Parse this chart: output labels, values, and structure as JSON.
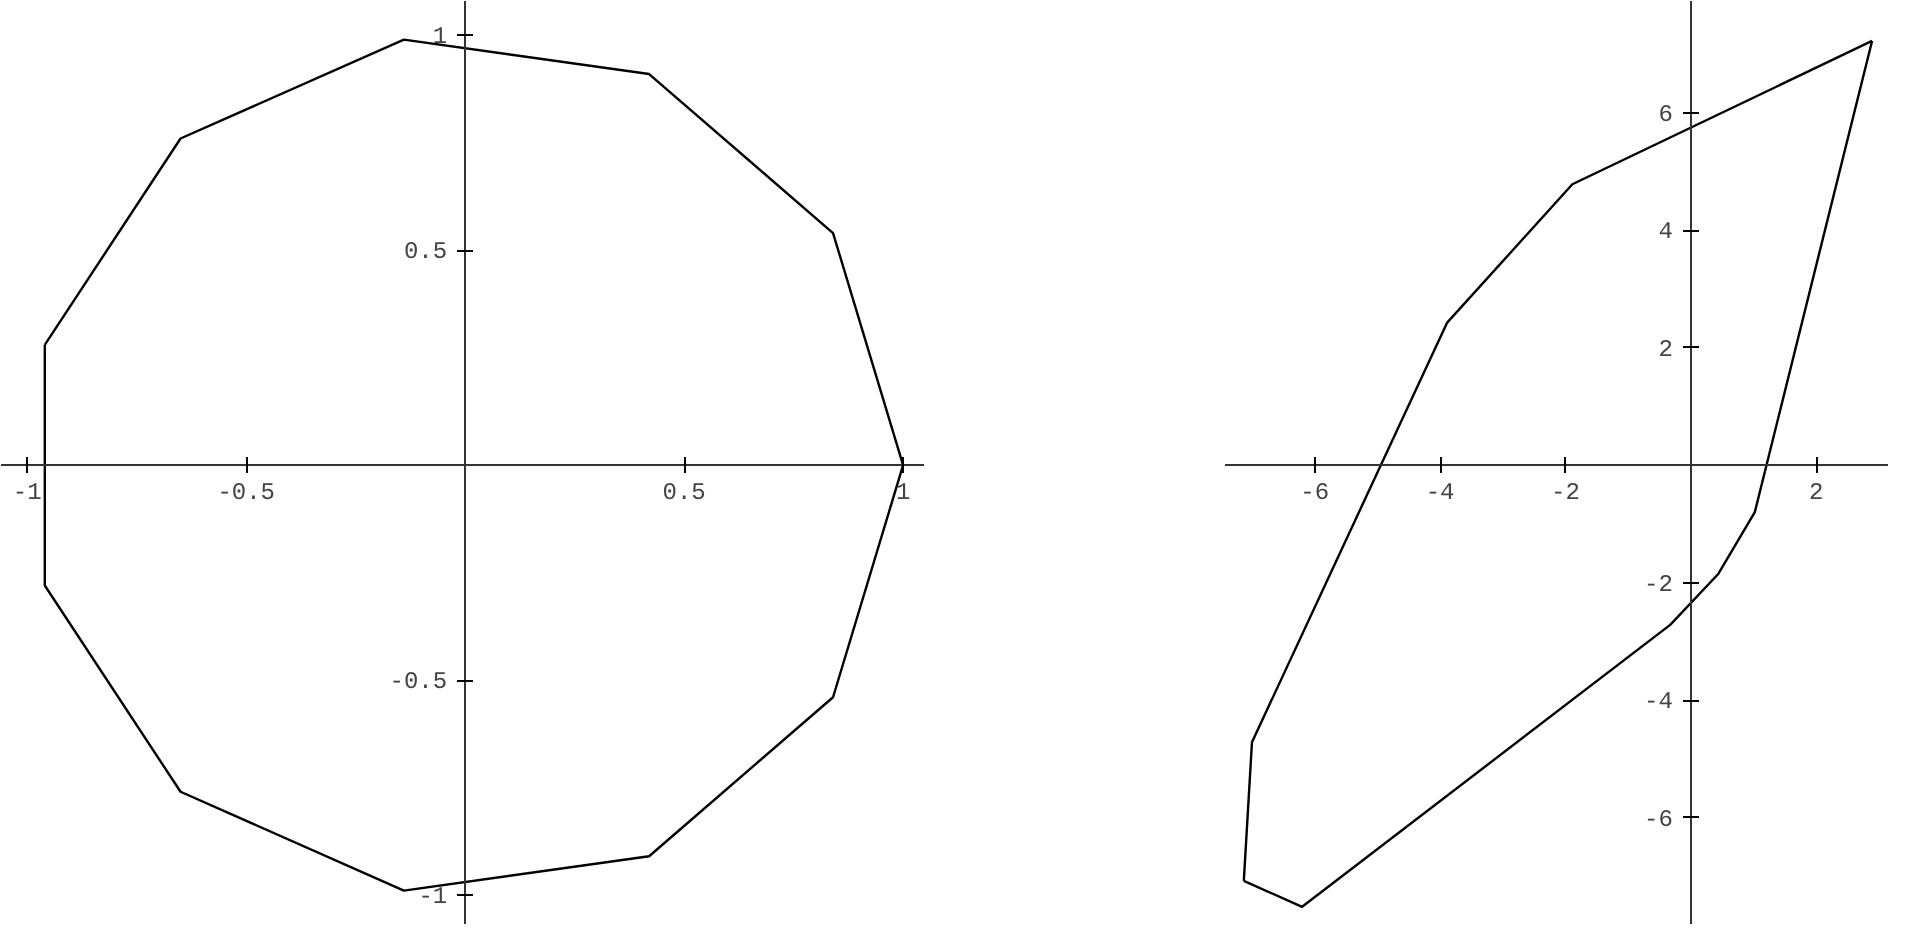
{
  "chart_data": [
    {
      "type": "line",
      "series": [
        {
          "color": "#000000",
          "x": [
            1,
            0.84,
            0.42,
            -0.14,
            -0.65,
            -0.96
          ],
          "values": [
            0,
            0.54,
            0.91,
            0.99,
            0.76,
            0.28
          ]
        },
        {
          "color": "#000000",
          "x": [
            -0.96,
            -0.96,
            -0.65,
            -0.14,
            0.42,
            0.84,
            1
          ],
          "values": [
            0.28,
            -0.28,
            -0.76,
            -0.99,
            -0.91,
            -0.54,
            0
          ]
        }
      ],
      "xlim": [
        -1.06,
        1.05
      ],
      "ylim": [
        -1.07,
        1.08
      ],
      "xticks": [
        {
          "value": -1,
          "label": "-1"
        },
        {
          "value": -0.5,
          "label": "-0.5"
        },
        {
          "value": 0.5,
          "label": "0.5"
        },
        {
          "value": 1,
          "label": "1"
        }
      ],
      "yticks": [
        {
          "value": -1,
          "label": "-1"
        },
        {
          "value": -0.5,
          "label": "-0.5"
        },
        {
          "value": 0.5,
          "label": "0.5"
        },
        {
          "value": 1,
          "label": "1"
        }
      ],
      "grid": false,
      "marker": "none",
      "line_style": "solid"
    },
    {
      "type": "line",
      "series": [
        {
          "color": "#000000",
          "x": [
            2.89,
            -1.89,
            -3.89,
            -7.0,
            -7.13
          ],
          "values": [
            7.22,
            4.78,
            2.42,
            -4.72,
            -7.08
          ]
        },
        {
          "color": "#000000",
          "x": [
            -7.13,
            -6.2,
            -0.33,
            0.44,
            1.02,
            2.89
          ],
          "values": [
            -7.08,
            -7.52,
            -2.72,
            -1.85,
            -0.8,
            7.22
          ]
        }
      ],
      "xlim": [
        -7.43,
        3.16
      ],
      "ylim": [
        -7.83,
        7.9
      ],
      "xticks": [
        -6,
        -4,
        -2,
        2
      ],
      "yticks": [
        -6,
        -4,
        -2,
        2,
        4,
        6
      ],
      "grid": false,
      "marker": "none",
      "line_style": "solid"
    }
  ]
}
